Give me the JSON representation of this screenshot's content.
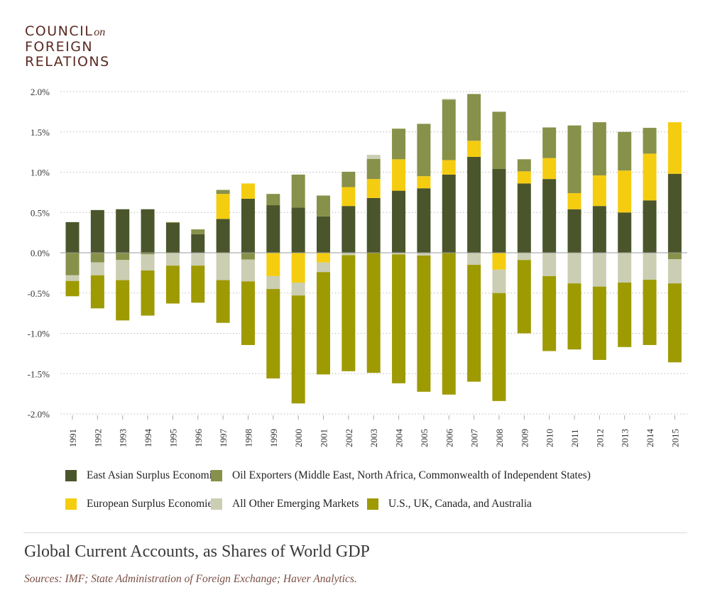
{
  "logo": {
    "line1": "COUNCIL",
    "on": "on",
    "line2": "FOREIGN",
    "line3": "RELATIONS"
  },
  "chart_data": {
    "type": "bar",
    "stacked": true,
    "title": "Global Current Accounts, as Shares of World GDP",
    "source": "Sources: IMF; State Administration of Foreign Exchange; Haver Analytics.",
    "ylim": [
      -2.0,
      2.0
    ],
    "yticks": [
      2.0,
      1.5,
      1.0,
      0.5,
      0.0,
      -0.5,
      -1.0,
      -1.5,
      -2.0
    ],
    "ytick_labels": [
      "2.0%",
      "1.5%",
      "1.0%",
      "0.5%",
      "0.0%",
      "-0.5%",
      "-1.0%",
      "-1.5%",
      "-2.0%"
    ],
    "grid": true,
    "legend_position": "bottom",
    "categories": [
      "1991",
      "1992",
      "1993",
      "1994",
      "1995",
      "1996",
      "1997",
      "1998",
      "1999",
      "2000",
      "2001",
      "2002",
      "2003",
      "2004",
      "2005",
      "2006",
      "2007",
      "2008",
      "2009",
      "2010",
      "2011",
      "2012",
      "2013",
      "2014",
      "2015"
    ],
    "series": [
      {
        "name": "East Asian Surplus Economies",
        "color": "#4a552b",
        "values": [
          0.38,
          0.53,
          0.54,
          0.54,
          0.37,
          0.23,
          0.42,
          0.67,
          0.59,
          0.56,
          0.45,
          0.58,
          0.68,
          0.77,
          0.8,
          0.97,
          1.19,
          1.04,
          0.86,
          0.915,
          0.54,
          0.58,
          0.5,
          0.65,
          0.98
        ]
      },
      {
        "name": "European Surplus Economies",
        "color": "#f5cd10",
        "values": [
          0,
          0,
          0,
          0,
          0,
          0,
          0.31,
          0.19,
          -0.29,
          -0.37,
          -0.12,
          0.235,
          0.235,
          0.39,
          0.15,
          0.18,
          0.2,
          -0.21,
          0.15,
          0.26,
          0.2,
          0.38,
          0.52,
          0.58,
          0.64
        ]
      },
      {
        "name": "Oil Exporters (Middle East, North Africa, Commonwealth of Independent States)",
        "color": "#87914a",
        "values": [
          -0.28,
          -0.12,
          -0.09,
          -0.02,
          0.01,
          0.06,
          0.05,
          -0.085,
          0.14,
          0.41,
          0.26,
          0.19,
          0.25,
          0.38,
          0.65,
          0.75,
          0.58,
          0.71,
          0.15,
          0.38,
          0.84,
          0.66,
          0.48,
          0.32,
          -0.08
        ]
      },
      {
        "name": "All Other Emerging Markets",
        "color": "#cbceb2",
        "values": [
          -0.07,
          -0.16,
          -0.25,
          -0.2,
          -0.16,
          -0.16,
          -0.34,
          -0.27,
          -0.16,
          -0.16,
          -0.12,
          -0.03,
          0.05,
          -0.02,
          -0.035,
          0.01,
          -0.15,
          -0.29,
          -0.09,
          -0.29,
          -0.38,
          -0.42,
          -0.37,
          -0.335,
          -0.3
        ]
      },
      {
        "name": "U.S., UK, Canada, and Australia",
        "color": "#9e9a02",
        "values": [
          -0.19,
          -0.41,
          -0.5,
          -0.56,
          -0.47,
          -0.46,
          -0.53,
          -0.79,
          -1.11,
          -1.34,
          -1.27,
          -1.44,
          -1.49,
          -1.6,
          -1.69,
          -1.76,
          -1.45,
          -1.34,
          -0.91,
          -0.93,
          -0.82,
          -0.91,
          -0.8,
          -0.81,
          -0.98
        ]
      }
    ]
  }
}
